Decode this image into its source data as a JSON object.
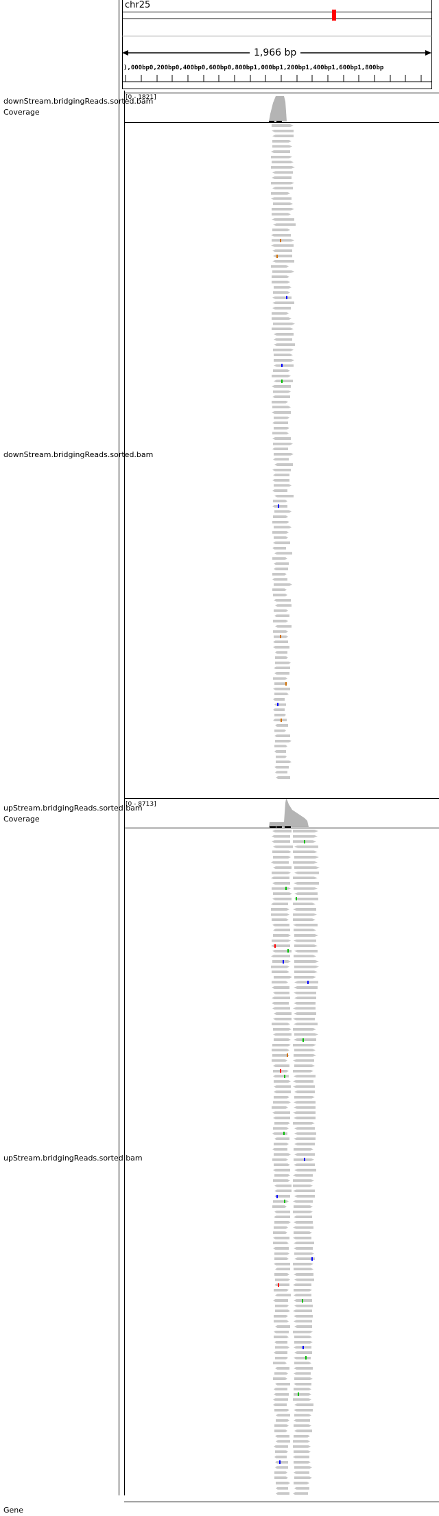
{
  "ruler": {
    "chromosome": "chr25",
    "span_label": "1,966 bp",
    "tick_labels": "),000bp0,200bp0,400bp0,600bp0,800bp1,000bp1,200bp1,400bp1,600bp1,800bp"
  },
  "tracks": [
    {
      "id": "down-coverage",
      "label": "downStream.bridgingReads.sorted.bam Coverage",
      "data_range": "[0 - 1821]"
    },
    {
      "id": "down-alignments",
      "label": "downStream.bridgingReads.sorted.bam"
    },
    {
      "id": "up-coverage",
      "label": "upStream.bridgingReads.sorted.bam Coverage",
      "data_range": "[0 - 8713]"
    },
    {
      "id": "up-alignments",
      "label": "upStream.bridgingReads.sorted.bam"
    },
    {
      "id": "gene",
      "label": "Gene"
    }
  ],
  "colors": {
    "read": "#c8c8c8",
    "coverage": "#b4b4b4",
    "ideogram_marker": "#ff0000",
    "mismatch_a": "#00c000",
    "mismatch_c": "#0000ff",
    "mismatch_g": "#d17105",
    "mismatch_t": "#ff0000"
  }
}
